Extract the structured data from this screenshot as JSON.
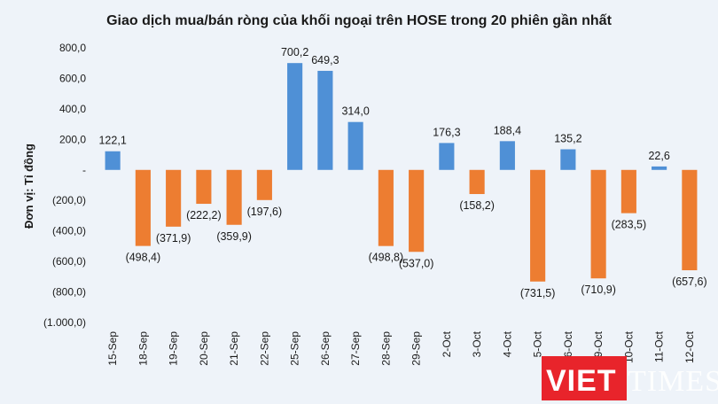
{
  "chart_data": {
    "type": "bar",
    "title": "Giao dịch mua/bán ròng của khối ngoại trên HOSE trong 20 phiên gần nhất",
    "ylabel": "Đơn vị: Tỉ đồng",
    "xlabel": "",
    "ylim": [
      -1000,
      800
    ],
    "yticks": [
      800,
      600,
      400,
      200,
      0,
      -200,
      -400,
      -600,
      -800,
      -1000
    ],
    "ytick_labels": [
      "800,0",
      "600,0",
      "400,0",
      "200,0",
      "-",
      "(200,0)",
      "(400,0)",
      "(600,0)",
      "(800,0)",
      "(1.000,0)"
    ],
    "grid": false,
    "categories": [
      "15-Sep",
      "18-Sep",
      "19-Sep",
      "20-Sep",
      "21-Sep",
      "22-Sep",
      "25-Sep",
      "26-Sep",
      "27-Sep",
      "28-Sep",
      "29-Sep",
      "2-Oct",
      "3-Oct",
      "4-Oct",
      "5-Oct",
      "6-Oct",
      "9-Oct",
      "10-Oct",
      "11-Oct",
      "12-Oct"
    ],
    "values": [
      122.1,
      -498.4,
      -371.9,
      -222.2,
      -359.9,
      -197.6,
      700.2,
      649.3,
      314.0,
      -498.8,
      -537.0,
      176.3,
      -158.2,
      188.4,
      -731.5,
      135.2,
      -710.9,
      -283.5,
      22.6,
      -657.6
    ],
    "value_labels": [
      "122,1",
      "(498,4)",
      "(371,9)",
      "(222,2)",
      "(359,9)",
      "(197,6)",
      "700,2",
      "649,3",
      "314,0",
      "(498,8)",
      "(537,0)",
      "176,3",
      "(158,2)",
      "188,4",
      "(731,5)",
      "135,2",
      "(710,9)",
      "(283,5)",
      "22,6",
      "(657,6)"
    ],
    "colors": {
      "positive": "#4f90d6",
      "negative": "#ed7d31",
      "background": "#eef3f9"
    }
  },
  "watermark": {
    "brand_left": "VIET",
    "brand_right": "TIMES",
    "brand_color": "#e8242b"
  }
}
